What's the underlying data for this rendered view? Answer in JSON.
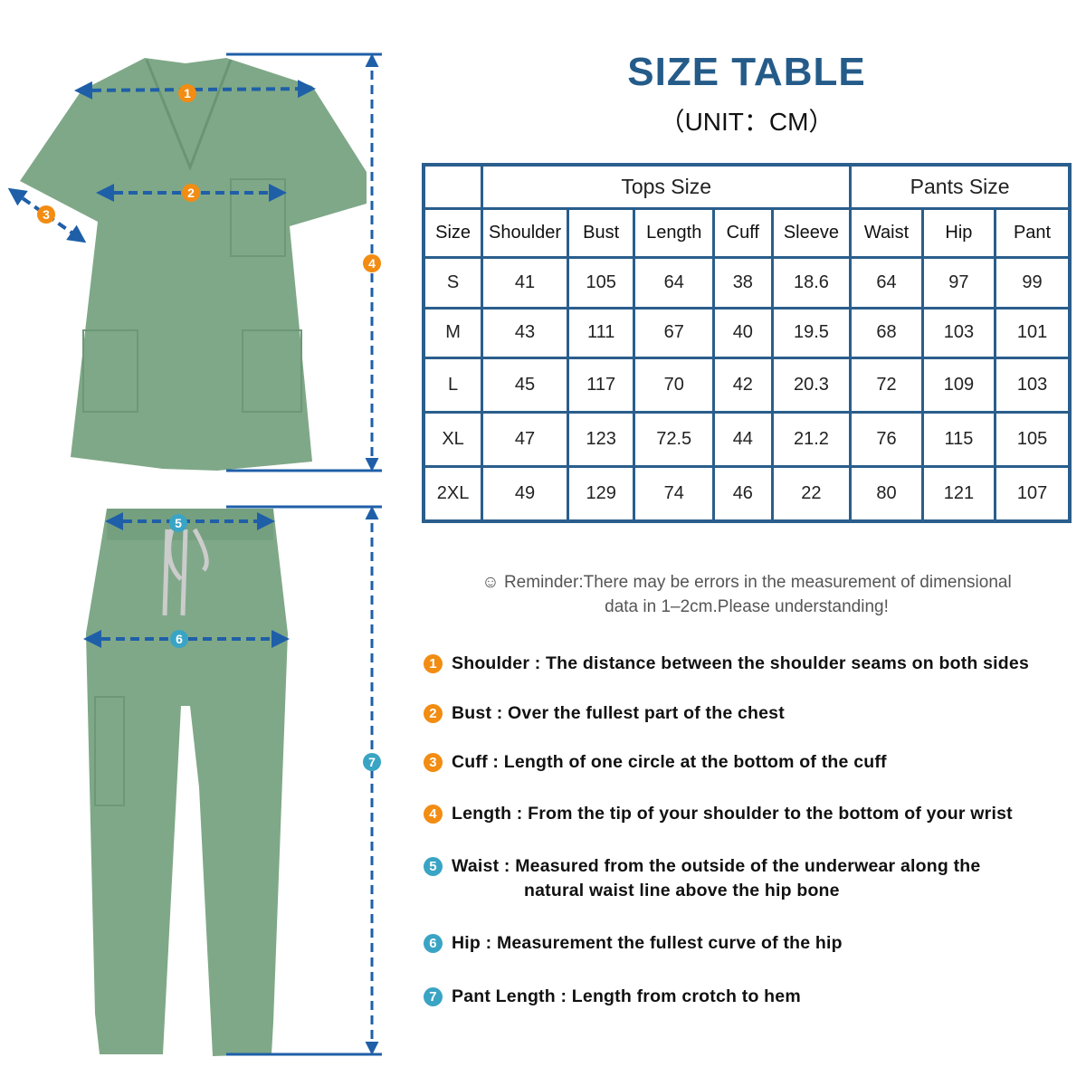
{
  "title": "SIZE TABLE",
  "unit": "（UNIT：CM）",
  "colors": {
    "accent": "#245b89",
    "table_border": "#2a5e8c",
    "arrow": "#1f5fa8",
    "orange_badge": "#f28c12",
    "teal_badge": "#3aa4c4",
    "garment": "#7fa888"
  },
  "table": {
    "group_headers": [
      "Tops Size",
      "Pants Size"
    ],
    "columns": [
      "Size",
      "Shoulder",
      "Bust",
      "Length",
      "Cuff",
      "Sleeve",
      "Waist",
      "Hip",
      "Pant"
    ],
    "rows": [
      [
        "S",
        "41",
        "105",
        "64",
        "38",
        "18.6",
        "64",
        "97",
        "99"
      ],
      [
        "M",
        "43",
        "111",
        "67",
        "40",
        "19.5",
        "68",
        "103",
        "101"
      ],
      [
        "L",
        "45",
        "117",
        "70",
        "42",
        "20.3",
        "72",
        "109",
        "103"
      ],
      [
        "XL",
        "47",
        "123",
        "72.5",
        "44",
        "21.2",
        "76",
        "115",
        "105"
      ],
      [
        "2XL",
        "49",
        "129",
        "74",
        "46",
        "22",
        "80",
        "121",
        "107"
      ]
    ]
  },
  "reminder": {
    "icon": "smiley-icon",
    "line1": "Reminder:There may be errors in the measurement of dimensional",
    "line2": "data in 1–2cm.Please understanding!"
  },
  "notes": [
    {
      "n": "1",
      "text": "Shoulder : The distance between the shoulder seams on both sides",
      "color": "orange"
    },
    {
      "n": "2",
      "text": "Bust : Over the fullest part of the chest",
      "color": "orange"
    },
    {
      "n": "3",
      "text": "Cuff : Length of one circle at the bottom of the cuff",
      "color": "orange"
    },
    {
      "n": "4",
      "text": "Length : From the tip of your shoulder to the bottom of your wrist",
      "color": "orange"
    },
    {
      "n": "5",
      "text": "Waist : Measured from the outside of the underwear along the",
      "cont": "natural waist line above the hip bone",
      "color": "teal"
    },
    {
      "n": "6",
      "text": "Hip : Measurement the fullest curve of the hip",
      "color": "teal"
    },
    {
      "n": "7",
      "text": "Pant Length : Length from crotch to hem",
      "color": "teal"
    }
  ],
  "markers": [
    "1",
    "2",
    "3",
    "4",
    "5",
    "6",
    "7"
  ]
}
